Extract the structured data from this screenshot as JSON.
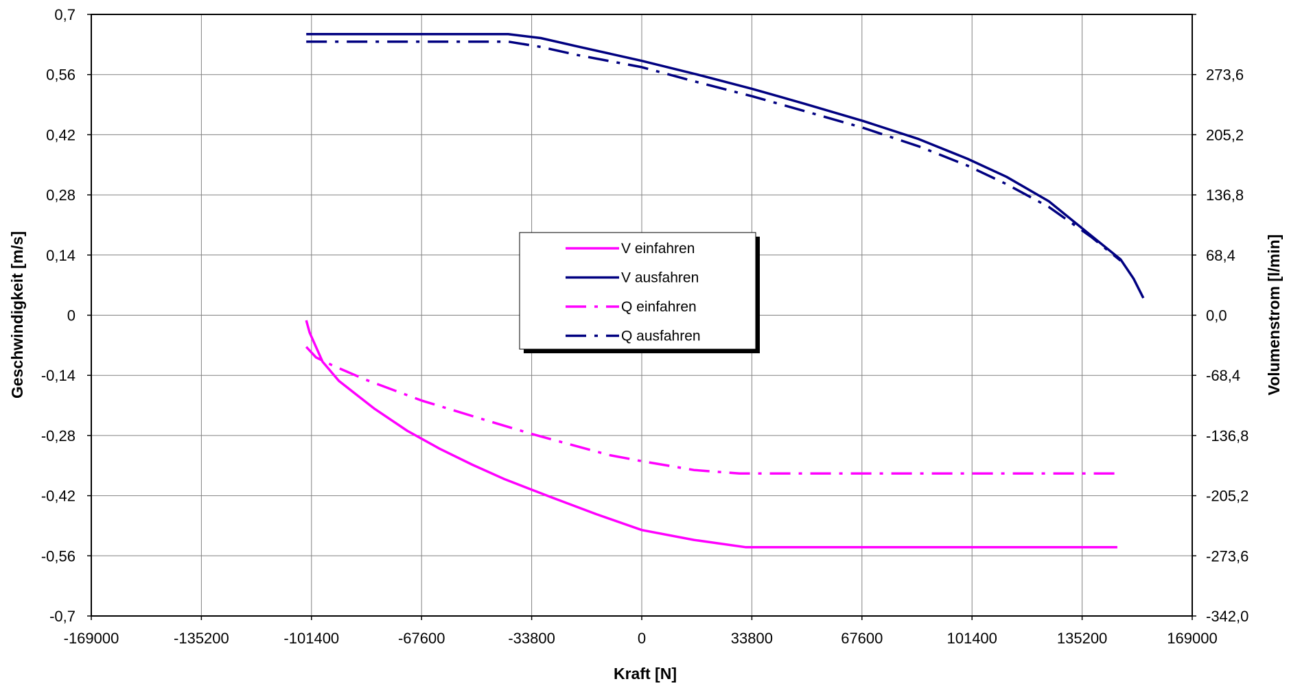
{
  "chart_data": {
    "type": "line",
    "xlabel": "Kraft [N]",
    "ylabel": "Geschwindigkeit [m/s]",
    "y2label": "Volumenstrom [l/min]",
    "xlim": [
      -169000,
      169000
    ],
    "ylim": [
      -0.7,
      0.7
    ],
    "y2lim": [
      -342.0,
      342.0
    ],
    "x_ticks": [
      "-169000",
      "-135200",
      "-101400",
      "-67600",
      "-33800",
      "0",
      "33800",
      "67600",
      "101400",
      "135200",
      "169000"
    ],
    "y_ticks": [
      "0,7",
      "0,56",
      "0,42",
      "0,28",
      "0,14",
      "0",
      "-0,14",
      "-0,28",
      "-0,42",
      "-0,56",
      "-0,7"
    ],
    "y2_ticks": [
      "",
      "273,6",
      "205,2",
      "136,8",
      "68,4",
      "0,0",
      "-68,4",
      "-136,8",
      "-205,2",
      "-273,6",
      "-342,0"
    ],
    "grid": true,
    "legend_position": "center",
    "series": [
      {
        "name": "V einfahren",
        "axis": "left",
        "color": "#ff00ff",
        "dash": "solid",
        "x": [
          -103000,
          -102000,
          -98000,
          -93000,
          -82000,
          -72000,
          -62000,
          -52000,
          -42000,
          -28000,
          -14000,
          0,
          16000,
          32000,
          83000,
          146000
        ],
        "y": [
          -0.012,
          -0.04,
          -0.108,
          -0.153,
          -0.218,
          -0.269,
          -0.311,
          -0.348,
          -0.382,
          -0.423,
          -0.463,
          -0.5,
          -0.523,
          -0.54,
          -0.54,
          -0.54
        ]
      },
      {
        "name": "V ausfahren",
        "axis": "left",
        "color": "#000080",
        "dash": "solid",
        "x": [
          -103000,
          -85000,
          -63000,
          -41000,
          -31000,
          -20000,
          0,
          16000,
          33800,
          50000,
          68000,
          85000,
          100000,
          112000,
          125000,
          138000,
          147000,
          151000,
          154000
        ],
        "y": [
          0.654,
          0.654,
          0.654,
          0.654,
          0.645,
          0.626,
          0.592,
          0.562,
          0.527,
          0.492,
          0.452,
          0.41,
          0.364,
          0.322,
          0.265,
          0.185,
          0.13,
          0.085,
          0.04
        ]
      },
      {
        "name": "Q einfahren",
        "axis": "right",
        "color": "#ff00ff",
        "dash": "dashdot",
        "x": [
          -103000,
          -100000,
          -95000,
          -85000,
          -67600,
          -50000,
          -33800,
          -10000,
          0,
          16000,
          30000,
          60000,
          100000,
          146000
        ],
        "y": [
          -36.0,
          -48.0,
          -57.0,
          -73.0,
          -97.0,
          -117.0,
          -135.0,
          -159.0,
          -166.0,
          -176.0,
          -180.0,
          -180.0,
          -180.0,
          -180.0
        ]
      },
      {
        "name": "Q ausfahren",
        "axis": "right",
        "color": "#000080",
        "dash": "dashdot",
        "x": [
          -103000,
          -85000,
          -63000,
          -41000,
          -31000,
          -20000,
          0,
          16000,
          33800,
          50000,
          68000,
          85000,
          100000,
          112000,
          125000,
          138000,
          147000
        ],
        "y": [
          311.0,
          311.0,
          311.0,
          311.0,
          305.0,
          296.0,
          282.0,
          266.0,
          249.0,
          232.0,
          213.0,
          192.0,
          170.0,
          149.0,
          123.0,
          89.0,
          62.0
        ]
      }
    ]
  }
}
